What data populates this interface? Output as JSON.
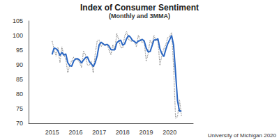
{
  "chart_data": {
    "type": "line",
    "title": "Index of Consumer Sentiment",
    "subtitle": "(Monthly and 3MMA)",
    "annotations": [
      "University of Michigan 2020"
    ],
    "x": [
      2015,
      2015.083,
      2015.167,
      2015.25,
      2015.333,
      2015.417,
      2015.5,
      2015.583,
      2015.667,
      2015.75,
      2015.833,
      2015.917,
      2016,
      2016.083,
      2016.167,
      2016.25,
      2016.333,
      2016.417,
      2016.5,
      2016.583,
      2016.667,
      2016.75,
      2016.833,
      2016.917,
      2017,
      2017.083,
      2017.167,
      2017.25,
      2017.333,
      2017.417,
      2017.5,
      2017.583,
      2017.667,
      2017.75,
      2017.833,
      2017.917,
      2018,
      2018.083,
      2018.167,
      2018.25,
      2018.333,
      2018.417,
      2018.5,
      2018.583,
      2018.667,
      2018.75,
      2018.833,
      2018.917,
      2019,
      2019.083,
      2019.167,
      2019.25,
      2019.333,
      2019.417,
      2019.5,
      2019.583,
      2019.667,
      2019.75,
      2019.833,
      2019.917,
      2020,
      2020.083,
      2020.167,
      2020.25,
      2020.333,
      2020.417,
      2020.5
    ],
    "series": [
      {
        "color": "#8c8c8c",
        "line_style": "dotted",
        "values": [
          98.1,
          95.4,
          93.0,
          95.9,
          90.7,
          96.1,
          93.1,
          91.9,
          87.2,
          90.0,
          91.3,
          92.6,
          92.0,
          91.7,
          91.0,
          89.0,
          94.7,
          93.5,
          90.0,
          89.8,
          91.2,
          87.2,
          93.8,
          98.2,
          98.5,
          96.3,
          96.9,
          97.0,
          97.1,
          95.1,
          93.4,
          96.8,
          95.1,
          100.7,
          98.5,
          95.9,
          95.7,
          99.7,
          101.4,
          98.8,
          98.0,
          98.2,
          97.9,
          96.2,
          100.1,
          98.6,
          97.5,
          98.3,
          91.2,
          93.8,
          98.4,
          97.2,
          100.0,
          98.2,
          98.4,
          89.8,
          93.2,
          95.5,
          96.8,
          99.3,
          99.8,
          101.0,
          89.1,
          71.8,
          72.3,
          78.1,
          72.5
        ]
      },
      {
        "color": "#2a66c2",
        "line_style": "solid",
        "values": [
          93.5,
          95.7,
          95.5,
          94.8,
          93.2,
          94.2,
          93.3,
          93.7,
          90.7,
          89.7,
          89.5,
          91.3,
          92.0,
          92.1,
          91.6,
          90.6,
          91.6,
          92.4,
          92.7,
          91.1,
          90.3,
          89.4,
          90.7,
          93.1,
          96.8,
          97.7,
          97.2,
          96.7,
          97.0,
          96.4,
          95.2,
          95.1,
          95.1,
          97.5,
          98.1,
          98.4,
          96.7,
          97.1,
          98.9,
          100.0,
          99.4,
          98.3,
          98.0,
          97.4,
          98.1,
          98.3,
          98.7,
          98.1,
          95.7,
          94.4,
          94.5,
          96.5,
          98.5,
          98.5,
          98.9,
          95.5,
          93.8,
          92.8,
          95.2,
          97.2,
          98.6,
          100.0,
          96.6,
          87.3,
          77.7,
          74.1,
          74.3
        ]
      }
    ],
    "xlim": [
      2014,
      2021
    ],
    "xticks": [
      2015,
      2016,
      2017,
      2018,
      2019,
      2020
    ],
    "ylim": [
      70,
      105
    ],
    "yticks": [
      70,
      75,
      80,
      85,
      90,
      95,
      100,
      105
    ],
    "grid": false
  }
}
